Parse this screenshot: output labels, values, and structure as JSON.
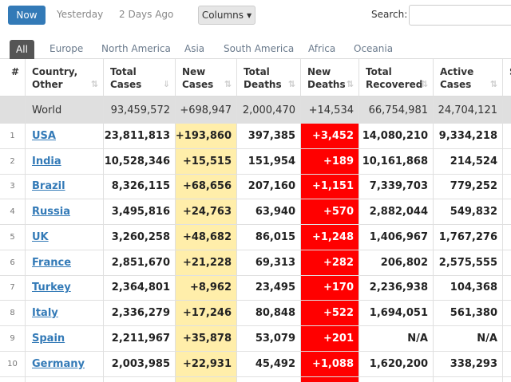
{
  "toolbar": {
    "buttons": [
      "Now",
      "Yesterday",
      "2 Days Ago"
    ],
    "columns_button": "Columns",
    "search_label": "Search:"
  },
  "tabs": [
    "All",
    "Europe",
    "North America",
    "Asia",
    "South America",
    "Africa",
    "Oceania"
  ],
  "table": {
    "headers": [
      [
        "#"
      ],
      [
        "Country,",
        "Other"
      ],
      [
        "Total",
        "Cases"
      ],
      [
        "New",
        "Cases"
      ],
      [
        "Total",
        "Deaths"
      ],
      [
        "New",
        "Deaths"
      ],
      [
        "Total",
        "Recovered"
      ],
      [
        "Active",
        "Cases"
      ],
      [
        "S"
      ]
    ],
    "world": {
      "country": "World",
      "cells": [
        "93,459,572",
        "+698,947",
        "2,000,470",
        "+14,534",
        "66,754,981",
        "24,704,121"
      ]
    },
    "rows": [
      {
        "rank": "1",
        "country": "USA",
        "cells": [
          "23,811,813",
          "+193,860",
          "397,385",
          "+3,452",
          "14,080,210",
          "9,334,218"
        ]
      },
      {
        "rank": "2",
        "country": "India",
        "cells": [
          "10,528,346",
          "+15,515",
          "151,954",
          "+189",
          "10,161,868",
          "214,524"
        ]
      },
      {
        "rank": "3",
        "country": "Brazil",
        "cells": [
          "8,326,115",
          "+68,656",
          "207,160",
          "+1,151",
          "7,339,703",
          "779,252"
        ]
      },
      {
        "rank": "4",
        "country": "Russia",
        "cells": [
          "3,495,816",
          "+24,763",
          "63,940",
          "+570",
          "2,882,044",
          "549,832"
        ]
      },
      {
        "rank": "5",
        "country": "UK",
        "cells": [
          "3,260,258",
          "+48,682",
          "86,015",
          "+1,248",
          "1,406,967",
          "1,767,276"
        ]
      },
      {
        "rank": "6",
        "country": "France",
        "cells": [
          "2,851,670",
          "+21,228",
          "69,313",
          "+282",
          "206,802",
          "2,575,555"
        ]
      },
      {
        "rank": "7",
        "country": "Turkey",
        "cells": [
          "2,364,801",
          "+8,962",
          "23,495",
          "+170",
          "2,236,938",
          "104,368"
        ]
      },
      {
        "rank": "8",
        "country": "Italy",
        "cells": [
          "2,336,279",
          "+17,246",
          "80,848",
          "+522",
          "1,694,051",
          "561,380"
        ]
      },
      {
        "rank": "9",
        "country": "Spain",
        "cells": [
          "2,211,967",
          "+35,878",
          "53,079",
          "+201",
          "N/A",
          "N/A"
        ]
      },
      {
        "rank": "10",
        "country": "Germany",
        "cells": [
          "2,003,985",
          "+22,931",
          "45,492",
          "+1,088",
          "1,620,200",
          "338,293"
        ]
      }
    ]
  }
}
